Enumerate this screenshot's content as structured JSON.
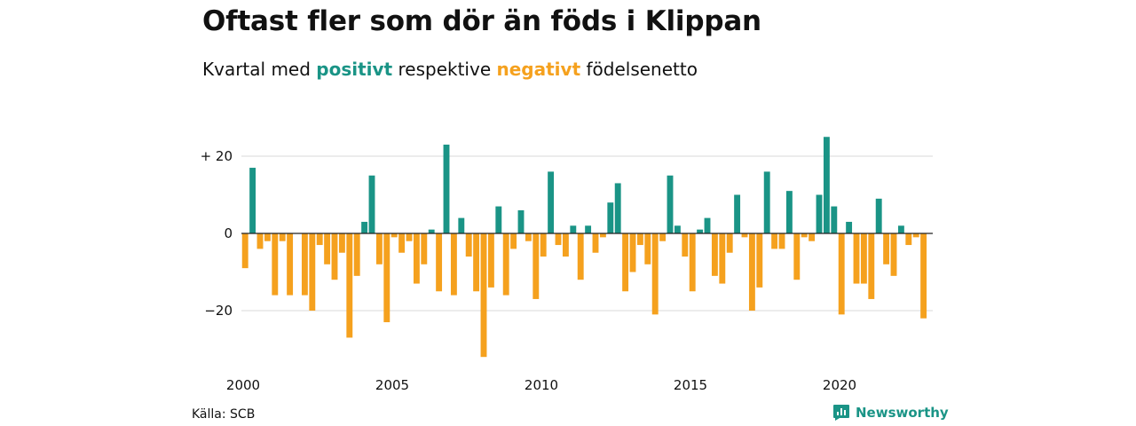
{
  "title": "Oftast fler som dör än föds i Klippan",
  "subtitle": {
    "before": "Kvartal med",
    "positive": "positivt",
    "middle": "respektive",
    "negative": "negativt",
    "after": "födelsenetto"
  },
  "colors": {
    "positive": "#1a9486",
    "negative": "#f5a11e",
    "gridline": "#d9d9d9",
    "zeroline": "#222222"
  },
  "footer": {
    "source": "Källa: SCB",
    "brand": "Newsworthy",
    "brand_icon": "bar-chart-logo-icon"
  },
  "chart_data": {
    "type": "bar",
    "x_start": 2000.0,
    "x_step": 0.25,
    "values": [
      -9,
      17,
      -4,
      -2,
      -16,
      -2,
      -16,
      0,
      -16,
      -20,
      -3,
      -8,
      -12,
      -5,
      -27,
      -11,
      3,
      15,
      -8,
      -23,
      -1,
      -5,
      -2,
      -13,
      -8,
      1,
      -15,
      23,
      -16,
      4,
      -6,
      -15,
      -32,
      -14,
      7,
      -16,
      -4,
      6,
      -2,
      -17,
      -6,
      16,
      -3,
      -6,
      2,
      -12,
      2,
      -5,
      -1,
      8,
      13,
      -15,
      -10,
      -3,
      -8,
      -21,
      -2,
      15,
      2,
      -6,
      -15,
      1,
      4,
      -11,
      -13,
      -5,
      10,
      -1,
      -20,
      -14,
      16,
      -4,
      -4,
      11,
      -12,
      -1,
      -2,
      10,
      25,
      7,
      -21,
      3,
      -13,
      -13,
      -17,
      9,
      -8,
      -11,
      2,
      -3,
      -1,
      -22
    ],
    "ylim": [
      -33,
      25
    ],
    "y_ticks": [
      {
        "value": 20,
        "label": "+ 20"
      },
      {
        "value": 0,
        "label": "0"
      },
      {
        "value": -20,
        "label": "−20"
      }
    ],
    "x_ticks": [
      {
        "value": 2000,
        "label": "2000"
      },
      {
        "value": 2005,
        "label": "2005"
      },
      {
        "value": 2010,
        "label": "2010"
      },
      {
        "value": 2015,
        "label": "2015"
      },
      {
        "value": 2020,
        "label": "2020"
      }
    ],
    "grid": true,
    "xlabel": "",
    "ylabel": ""
  }
}
